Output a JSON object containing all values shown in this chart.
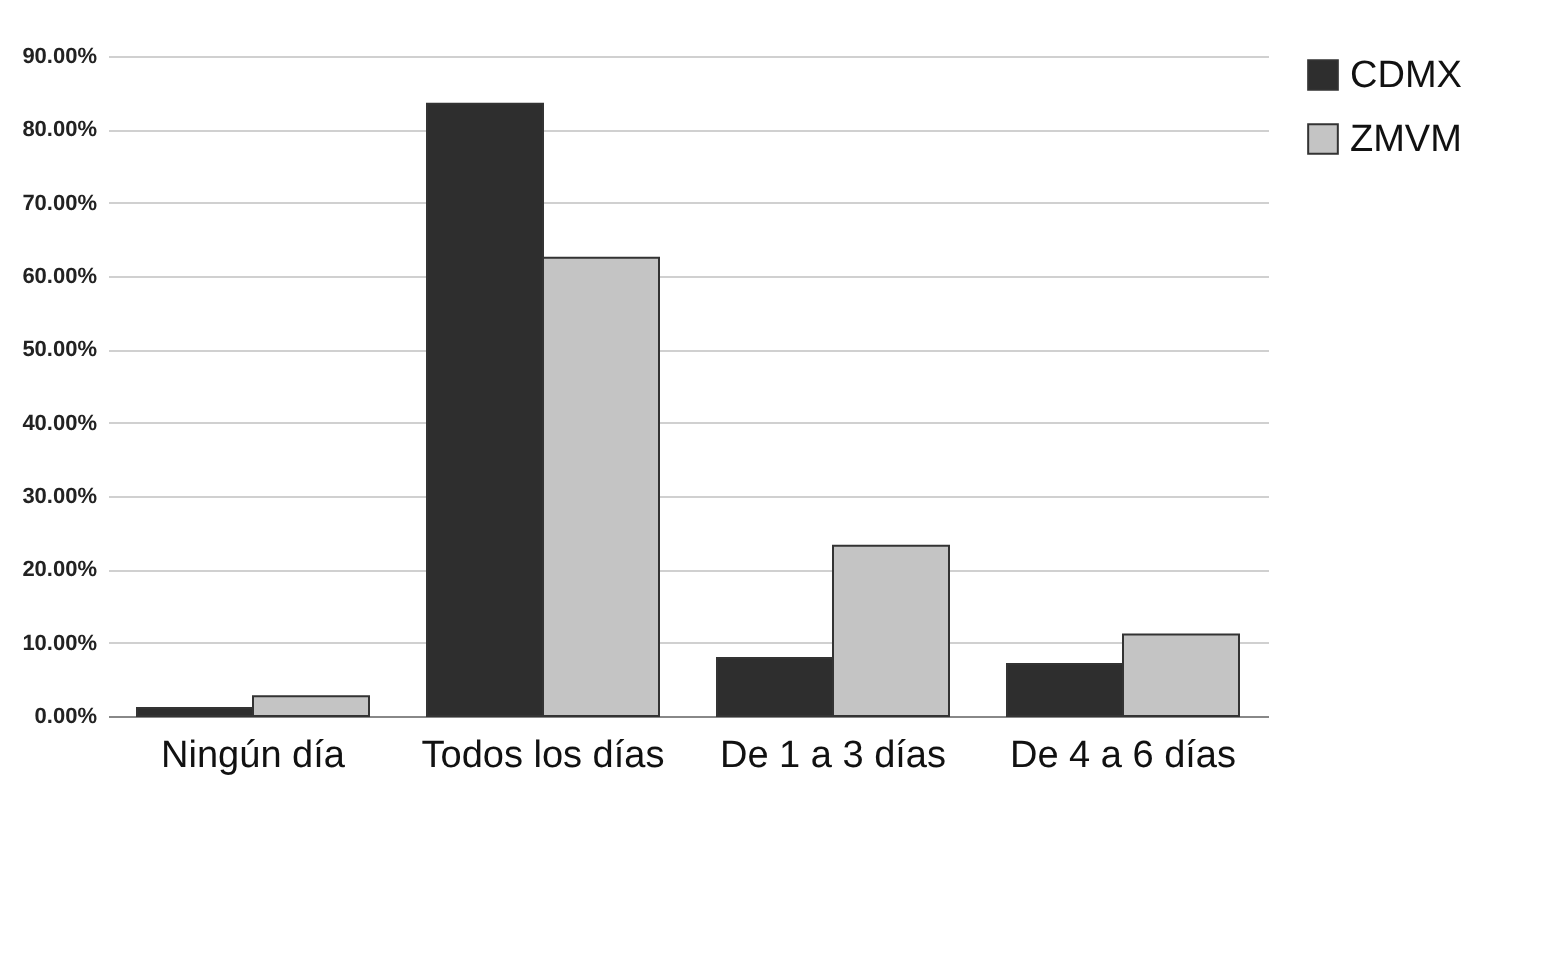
{
  "chart_data": {
    "type": "bar",
    "categories": [
      "Ningún día",
      "Todos los días",
      "De 1 a 3 días",
      "De 4 a 6 días"
    ],
    "series": [
      {
        "name": "CDMX",
        "color": "#2e2e2e",
        "values": [
          1.1,
          83.5,
          7.9,
          7.1
        ]
      },
      {
        "name": "ZMVM",
        "color": "#c4c4c4",
        "values": [
          2.7,
          62.5,
          23.2,
          11.1
        ]
      }
    ],
    "ylim": [
      0,
      90
    ],
    "yticks": [
      {
        "value": 0,
        "label": "0.00%"
      },
      {
        "value": 10,
        "label": "10.00%"
      },
      {
        "value": 20,
        "label": "20.00%"
      },
      {
        "value": 30,
        "label": "30.00%"
      },
      {
        "value": 40,
        "label": "40.00%"
      },
      {
        "value": 50,
        "label": "50.00%"
      },
      {
        "value": 60,
        "label": "60.00%"
      },
      {
        "value": 70,
        "label": "70.00%"
      },
      {
        "value": 80,
        "label": "80.00%"
      },
      {
        "value": 90,
        "label": "90.00%"
      }
    ],
    "grid": "y",
    "legend": "right"
  }
}
